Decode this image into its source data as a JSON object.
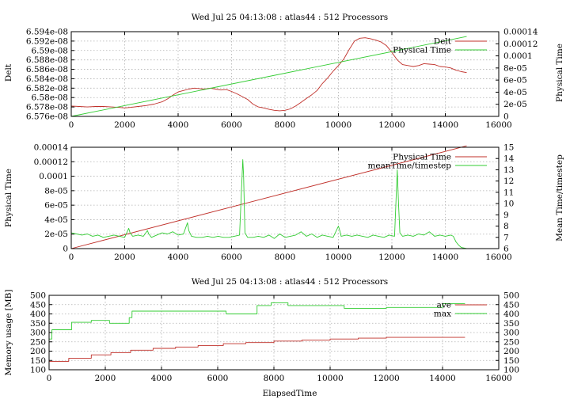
{
  "chart_data": [
    {
      "type": "line",
      "title": "Wed Jul 25 04:13:08 : atlas44 : 512 Processors",
      "xlabel": "",
      "ylabel": "Delt",
      "y2label": "Physical Time",
      "xlim": [
        0,
        16000
      ],
      "ylim": [
        6.576e-08,
        6.594e-08
      ],
      "y2lim": [
        0,
        0.00014
      ],
      "xticks": [
        "0",
        "2000",
        "4000",
        "6000",
        "8000",
        "10000",
        "12000",
        "14000",
        "16000"
      ],
      "yticks": [
        "6.576e-08",
        "6.578e-08",
        "6.58e-08",
        "6.582e-08",
        "6.584e-08",
        "6.586e-08",
        "6.588e-08",
        "6.59e-08",
        "6.592e-08",
        "6.594e-08"
      ],
      "y2ticks": [
        "0",
        "2e-05",
        "4e-05",
        "6e-05",
        "8e-05",
        "0.0001",
        "0.00012",
        "0.00014"
      ],
      "grid": true,
      "legend": "top-right",
      "colors": {
        "axis_left": "#c0302a",
        "axis_right": "#33cc33"
      },
      "series": [
        {
          "name": "Delt",
          "axis": "left",
          "color": "#c0302a",
          "x": [
            0,
            300,
            600,
            900,
            1200,
            1500,
            1800,
            2000,
            2200,
            2500,
            2800,
            3100,
            3400,
            3600,
            3800,
            4000,
            4200,
            4400,
            4600,
            4800,
            5000,
            5200,
            5400,
            5600,
            5800,
            6000,
            6200,
            6400,
            6600,
            6800,
            7000,
            7200,
            7400,
            7600,
            7800,
            8000,
            8200,
            8400,
            8600,
            8800,
            9000,
            9200,
            9400,
            9600,
            9800,
            10000,
            10200,
            10400,
            10600,
            10800,
            11000,
            11200,
            11400,
            11600,
            11800,
            12000,
            12200,
            12400,
            12600,
            12800,
            13000,
            13200,
            13400,
            13600,
            13800,
            14000,
            14200,
            14400,
            14600,
            14800
          ],
          "y": [
            6.5782e-08,
            6.5781e-08,
            6.578e-08,
            6.5781e-08,
            6.5781e-08,
            6.578e-08,
            6.5779e-08,
            6.5778e-08,
            6.5779e-08,
            6.5781e-08,
            6.5783e-08,
            6.5786e-08,
            6.5791e-08,
            6.5797e-08,
            6.5805e-08,
            6.5812e-08,
            6.5815e-08,
            6.5818e-08,
            6.582e-08,
            6.5819e-08,
            6.5818e-08,
            6.582e-08,
            6.5818e-08,
            6.5816e-08,
            6.5817e-08,
            6.5813e-08,
            6.5808e-08,
            6.5802e-08,
            6.5796e-08,
            6.5786e-08,
            6.578e-08,
            6.5778e-08,
            6.5775e-08,
            6.5773e-08,
            6.5772e-08,
            6.5773e-08,
            6.5776e-08,
            6.5782e-08,
            6.579e-08,
            6.5798e-08,
            6.5806e-08,
            6.5815e-08,
            6.583e-08,
            6.5842e-08,
            6.5856e-08,
            6.5868e-08,
            6.5882e-08,
            6.5902e-08,
            6.592e-08,
            6.5926e-08,
            6.5927e-08,
            6.5925e-08,
            6.5922e-08,
            6.5918e-08,
            6.591e-08,
            6.5896e-08,
            6.588e-08,
            6.587e-08,
            6.5868e-08,
            6.5866e-08,
            6.5868e-08,
            6.5872e-08,
            6.5871e-08,
            6.587e-08,
            6.5866e-08,
            6.5865e-08,
            6.5863e-08,
            6.5858e-08,
            6.5855e-08,
            6.5853e-08
          ]
        },
        {
          "name": "Physical Time",
          "axis": "right",
          "color": "#33cc33",
          "x": [
            0,
            14800
          ],
          "y": [
            0,
            0.000132
          ]
        }
      ]
    },
    {
      "type": "line",
      "title": "",
      "xlabel": "",
      "ylabel": "Physical Time",
      "y2label": "Mean Time/timestep",
      "xlim": [
        0,
        16000
      ],
      "ylim": [
        0,
        0.00014
      ],
      "y2lim": [
        6,
        15
      ],
      "xticks": [
        "0",
        "2000",
        "4000",
        "6000",
        "8000",
        "10000",
        "12000",
        "14000",
        "16000"
      ],
      "yticks": [
        "0",
        "2e-05",
        "4e-05",
        "6e-05",
        "8e-05",
        "0.0001",
        "0.00012",
        "0.00014"
      ],
      "y2ticks": [
        "6",
        "7",
        "8",
        "9",
        "10",
        "11",
        "12",
        "13",
        "14",
        "15"
      ],
      "grid": true,
      "legend": "top-right",
      "colors": {
        "axis_left": "#c0302a",
        "axis_right": "#33cc33"
      },
      "series": [
        {
          "name": "Physical Time",
          "axis": "left",
          "color": "#c0302a",
          "x": [
            0,
            14800
          ],
          "y": [
            0,
            0.000142
          ]
        },
        {
          "name": "meanTime/timestep",
          "axis": "right",
          "color": "#33cc33",
          "x": [
            0,
            200,
            400,
            600,
            800,
            1000,
            1200,
            1400,
            1600,
            1800,
            2000,
            2150,
            2200,
            2300,
            2500,
            2700,
            2850,
            2900,
            3000,
            3200,
            3400,
            3600,
            3800,
            4000,
            4200,
            4350,
            4400,
            4500,
            4700,
            4900,
            5100,
            5300,
            5500,
            5700,
            5900,
            6100,
            6300,
            6420,
            6450,
            6500,
            6600,
            6800,
            7000,
            7200,
            7400,
            7600,
            7800,
            8000,
            8200,
            8400,
            8600,
            8800,
            9000,
            9200,
            9400,
            9600,
            9800,
            10000,
            10050,
            10100,
            10300,
            10500,
            10700,
            10900,
            11100,
            11300,
            11500,
            11700,
            11900,
            12100,
            12200,
            12250,
            12300,
            12400,
            12600,
            12800,
            13000,
            13200,
            13400,
            13600,
            13800,
            14000,
            14200,
            14300,
            14400,
            14500,
            14600,
            14800
          ],
          "y": [
            7.4,
            7.3,
            7.2,
            7.3,
            7.1,
            7.2,
            7.0,
            7.1,
            7.2,
            7.1,
            7.0,
            7.8,
            7.4,
            7.1,
            7.2,
            7.1,
            7.6,
            7.3,
            7.0,
            7.2,
            7.4,
            7.3,
            7.5,
            7.2,
            7.3,
            8.3,
            7.6,
            7.1,
            7.0,
            7.0,
            7.1,
            7.0,
            7.1,
            7.0,
            7.0,
            7.1,
            7.2,
            13.9,
            12.5,
            7.4,
            7.0,
            7.0,
            7.1,
            7.0,
            7.2,
            6.9,
            7.3,
            7.0,
            7.1,
            7.2,
            7.5,
            7.1,
            7.3,
            7.0,
            7.2,
            7.1,
            7.0,
            8.0,
            7.6,
            7.1,
            7.2,
            7.1,
            7.2,
            7.1,
            7.0,
            7.2,
            7.1,
            7.0,
            7.2,
            7.1,
            13.0,
            10.0,
            7.4,
            7.1,
            7.2,
            7.1,
            7.3,
            7.2,
            7.5,
            7.1,
            7.2,
            7.1,
            7.2,
            7.1,
            6.6,
            6.3,
            6.1,
            6.0
          ]
        }
      ]
    },
    {
      "type": "line",
      "title": "Wed Jul 25 04:13:08 : atlas44 : 512 Processors",
      "xlabel": "ElapsedTime",
      "ylabel": "Memory usage [MB]",
      "y2label": "",
      "xlim": [
        0,
        16000
      ],
      "ylim": [
        100,
        500
      ],
      "y2lim": [
        100,
        500
      ],
      "xticks": [
        "0",
        "2000",
        "4000",
        "6000",
        "8000",
        "10000",
        "12000",
        "14000",
        "16000"
      ],
      "yticks": [
        "100",
        "150",
        "200",
        "250",
        "300",
        "350",
        "400",
        "450",
        "500"
      ],
      "y2ticks": [
        "100",
        "150",
        "200",
        "250",
        "300",
        "350",
        "400",
        "450",
        "500"
      ],
      "grid": true,
      "legend": "top-right",
      "colors": {
        "axis_left": "#c0302a",
        "axis_right": "#000000"
      },
      "series": [
        {
          "name": "ave",
          "axis": "left",
          "color": "#c0302a",
          "x": [
            0,
            700,
            701,
            1500,
            1501,
            2200,
            2201,
            2900,
            2901,
            3700,
            3701,
            4500,
            4501,
            5300,
            5301,
            6200,
            6201,
            7000,
            7001,
            8000,
            8001,
            9000,
            9001,
            10000,
            10001,
            11000,
            11001,
            12000,
            12001,
            14800
          ],
          "y": [
            145,
            145,
            162,
            162,
            180,
            180,
            192,
            192,
            205,
            205,
            215,
            215,
            222,
            222,
            230,
            230,
            240,
            240,
            246,
            246,
            254,
            254,
            260,
            260,
            265,
            265,
            270,
            270,
            274,
            274
          ]
        },
        {
          "name": "max",
          "axis": "left",
          "color": "#33cc33",
          "x": [
            0,
            100,
            101,
            800,
            801,
            1500,
            1501,
            2150,
            2151,
            2850,
            2851,
            2950,
            2951,
            6300,
            6301,
            7400,
            7401,
            7900,
            7901,
            8500,
            8501,
            10500,
            10501,
            12000,
            12001,
            14000,
            14001,
            14800
          ],
          "y": [
            265,
            265,
            315,
            315,
            355,
            355,
            365,
            365,
            350,
            350,
            380,
            380,
            415,
            415,
            400,
            400,
            445,
            445,
            460,
            460,
            445,
            445,
            430,
            430,
            435,
            435,
            455,
            455
          ]
        }
      ]
    }
  ]
}
